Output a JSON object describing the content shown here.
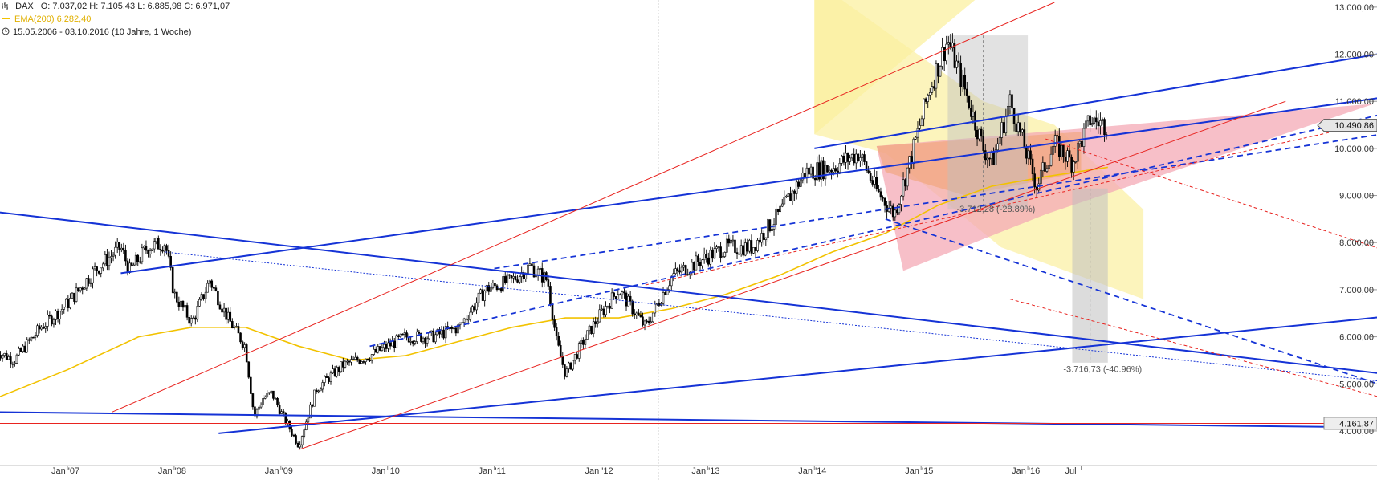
{
  "header": {
    "symbol": "DAX",
    "ohlc": "O: 7.037,02  H: 7.105,43  L: 6.885,98  C: 6.971,07",
    "ema_label": "EMA(200)  6.282,40",
    "period": "15.05.2006 - 03.10.2016 (10 Jahre, 1 Woche)"
  },
  "colors": {
    "candles": "#000000",
    "ema": "#f2c200",
    "trend_blue": "#1533d6",
    "trend_red": "#e8231f",
    "support_red": "#e8231f",
    "zone_yellow": "#fbf0a0",
    "zone_pink": "#f4a9b5",
    "zone_orange": "#f0a070",
    "measure_grey": "#bfbfbf",
    "last_price_bg": "#e6e6e6"
  },
  "chart_data": {
    "type": "candlestick",
    "title": "DAX",
    "x_tick_labels": [
      "Jan '07",
      "Jan '08",
      "Jan '09",
      "Jan '10",
      "Jan '11",
      "Jan '12",
      "Jan '13",
      "Jan '14",
      "Jan '15",
      "Jan '16",
      "Jul"
    ],
    "y_tick_labels": [
      "4.000,00",
      "5.000,00",
      "6.000,00",
      "7.000,00",
      "8.000,00",
      "9.000,00",
      "10.000,00",
      "11.000,00",
      "12.000,00",
      "13.000,00"
    ],
    "ylim": [
      3300,
      13100
    ],
    "price_path": [
      {
        "date": "2006-05",
        "close": 5700
      },
      {
        "date": "2006-07",
        "close": 5500
      },
      {
        "date": "2006-10",
        "close": 6200
      },
      {
        "date": "2007-01",
        "close": 6700
      },
      {
        "date": "2007-04",
        "close": 7400
      },
      {
        "date": "2007-07",
        "close": 7900
      },
      {
        "date": "2007-08",
        "close": 7400
      },
      {
        "date": "2007-10",
        "close": 7900
      },
      {
        "date": "2007-12",
        "close": 8000
      },
      {
        "date": "2008-01",
        "close": 6900
      },
      {
        "date": "2008-03",
        "close": 6300
      },
      {
        "date": "2008-05",
        "close": 7200
      },
      {
        "date": "2008-07",
        "close": 6400
      },
      {
        "date": "2008-09",
        "close": 5800
      },
      {
        "date": "2008-10",
        "close": 4300
      },
      {
        "date": "2008-11",
        "close": 4700
      },
      {
        "date": "2008-12",
        "close": 4800
      },
      {
        "date": "2009-01",
        "close": 4400
      },
      {
        "date": "2009-03",
        "close": 3700
      },
      {
        "date": "2009-05",
        "close": 4900
      },
      {
        "date": "2009-08",
        "close": 5400
      },
      {
        "date": "2009-11",
        "close": 5600
      },
      {
        "date": "2010-03",
        "close": 6000
      },
      {
        "date": "2010-06",
        "close": 6000
      },
      {
        "date": "2010-09",
        "close": 6200
      },
      {
        "date": "2010-12",
        "close": 7000
      },
      {
        "date": "2011-03",
        "close": 7200
      },
      {
        "date": "2011-05",
        "close": 7500
      },
      {
        "date": "2011-07",
        "close": 7200
      },
      {
        "date": "2011-08",
        "close": 5900
      },
      {
        "date": "2011-09",
        "close": 5200
      },
      {
        "date": "2011-11",
        "close": 5900
      },
      {
        "date": "2012-01",
        "close": 6500
      },
      {
        "date": "2012-03",
        "close": 7000
      },
      {
        "date": "2012-06",
        "close": 6200
      },
      {
        "date": "2012-09",
        "close": 7300
      },
      {
        "date": "2012-12",
        "close": 7600
      },
      {
        "date": "2013-03",
        "close": 7900
      },
      {
        "date": "2013-06",
        "close": 7900
      },
      {
        "date": "2013-09",
        "close": 8600
      },
      {
        "date": "2013-12",
        "close": 9500
      },
      {
        "date": "2014-03",
        "close": 9600
      },
      {
        "date": "2014-06",
        "close": 9900
      },
      {
        "date": "2014-08",
        "close": 9100
      },
      {
        "date": "2014-10",
        "close": 8600
      },
      {
        "date": "2014-12",
        "close": 9900
      },
      {
        "date": "2015-02",
        "close": 11300
      },
      {
        "date": "2015-04",
        "close": 12300
      },
      {
        "date": "2015-06",
        "close": 11200
      },
      {
        "date": "2015-08",
        "close": 10000
      },
      {
        "date": "2015-09",
        "close": 9700
      },
      {
        "date": "2015-11",
        "close": 11000
      },
      {
        "date": "2016-01",
        "close": 9800
      },
      {
        "date": "2016-02",
        "close": 9200
      },
      {
        "date": "2016-04",
        "close": 10100
      },
      {
        "date": "2016-06",
        "close": 9700
      },
      {
        "date": "2016-08",
        "close": 10600
      },
      {
        "date": "2016-10",
        "close": 10490
      }
    ],
    "ema200_path": [
      {
        "date": "2006-05",
        "value": 4700
      },
      {
        "date": "2007-01",
        "value": 5300
      },
      {
        "date": "2007-09",
        "value": 6000
      },
      {
        "date": "2008-03",
        "value": 6200
      },
      {
        "date": "2008-09",
        "value": 6200
      },
      {
        "date": "2009-03",
        "value": 5800
      },
      {
        "date": "2009-09",
        "value": 5500
      },
      {
        "date": "2010-03",
        "value": 5600
      },
      {
        "date": "2010-09",
        "value": 5900
      },
      {
        "date": "2011-03",
        "value": 6200
      },
      {
        "date": "2011-09",
        "value": 6400
      },
      {
        "date": "2012-03",
        "value": 6400
      },
      {
        "date": "2012-09",
        "value": 6600
      },
      {
        "date": "2013-03",
        "value": 6900
      },
      {
        "date": "2013-09",
        "value": 7300
      },
      {
        "date": "2014-03",
        "value": 7800
      },
      {
        "date": "2014-09",
        "value": 8200
      },
      {
        "date": "2015-03",
        "value": 8800
      },
      {
        "date": "2015-09",
        "value": 9200
      },
      {
        "date": "2016-03",
        "value": 9400
      },
      {
        "date": "2016-10",
        "value": 9600
      }
    ],
    "price_labels": [
      {
        "label": "10.490,86",
        "value": 10490.86,
        "style": "last_price"
      },
      {
        "label": "4.161,87",
        "value": 4161.87,
        "style": "support"
      }
    ],
    "annotations": [
      {
        "text": "-3.712,28 (-28.89%)"
      },
      {
        "text": "-3.716,73 (-40.96%)"
      }
    ],
    "trendlines": [
      {
        "color": "blue",
        "style": "solid",
        "from": {
          "date": "2007-07",
          "value": 7350
        },
        "to": {
          "date": "2020-05",
          "value": 11400
        }
      },
      {
        "color": "blue",
        "style": "solid",
        "from": {
          "date": "2014-01",
          "value": 10000
        },
        "to": {
          "date": "2020-05",
          "value": 12400
        }
      },
      {
        "color": "blue",
        "style": "solid",
        "from": {
          "date": "2006-05",
          "value": 8650
        },
        "to": {
          "date": "2020-05",
          "value": 4950
        }
      },
      {
        "color": "blue",
        "style": "solid",
        "from": {
          "date": "2006-05",
          "value": 4400
        },
        "to": {
          "date": "2020-05",
          "value": 4050
        }
      },
      {
        "color": "blue",
        "style": "solid",
        "from": {
          "date": "2008-06",
          "value": 3950
        },
        "to": {
          "date": "2020-05",
          "value": 6650
        }
      },
      {
        "color": "blue",
        "style": "dashed",
        "from": {
          "date": "2009-11",
          "value": 5800
        },
        "to": {
          "date": "2020-05",
          "value": 11250
        }
      },
      {
        "color": "blue",
        "style": "dashed",
        "from": {
          "date": "2011-01",
          "value": 7450
        },
        "to": {
          "date": "2020-05",
          "value": 10650
        }
      },
      {
        "color": "blue",
        "style": "dashed",
        "from": {
          "date": "2014-09",
          "value": 8500
        },
        "to": {
          "date": "2020-05",
          "value": 4200
        }
      },
      {
        "color": "blue",
        "style": "dotted",
        "from": {
          "date": "2007-12",
          "value": 7800
        },
        "to": {
          "date": "2019-05",
          "value": 5050
        }
      },
      {
        "color": "red",
        "style": "solid",
        "from": {
          "date": "2007-06",
          "value": 4400
        },
        "to": {
          "date": "2016-04",
          "value": 13100
        }
      },
      {
        "color": "red",
        "style": "solid",
        "from": {
          "date": "2009-03",
          "value": 3600
        },
        "to": {
          "date": "2018-06",
          "value": 11000
        }
      },
      {
        "color": "red",
        "style": "dashed",
        "from": {
          "date": "2012-06",
          "value": 7100
        },
        "to": {
          "date": "2020-05",
          "value": 11100
        }
      },
      {
        "color": "red",
        "style": "dashed",
        "from": {
          "date": "2016-03",
          "value": 10200
        },
        "to": {
          "date": "2020-05",
          "value": 7100
        }
      },
      {
        "color": "red",
        "style": "dashed",
        "from": {
          "date": "2015-11",
          "value": 6800
        },
        "to": {
          "date": "2020-05",
          "value": 4100
        }
      },
      {
        "color": "red",
        "style": "solid",
        "from": {
          "date": "2006-05",
          "value": 4160
        },
        "to": {
          "date": "2020-05",
          "value": 4160
        }
      }
    ]
  }
}
